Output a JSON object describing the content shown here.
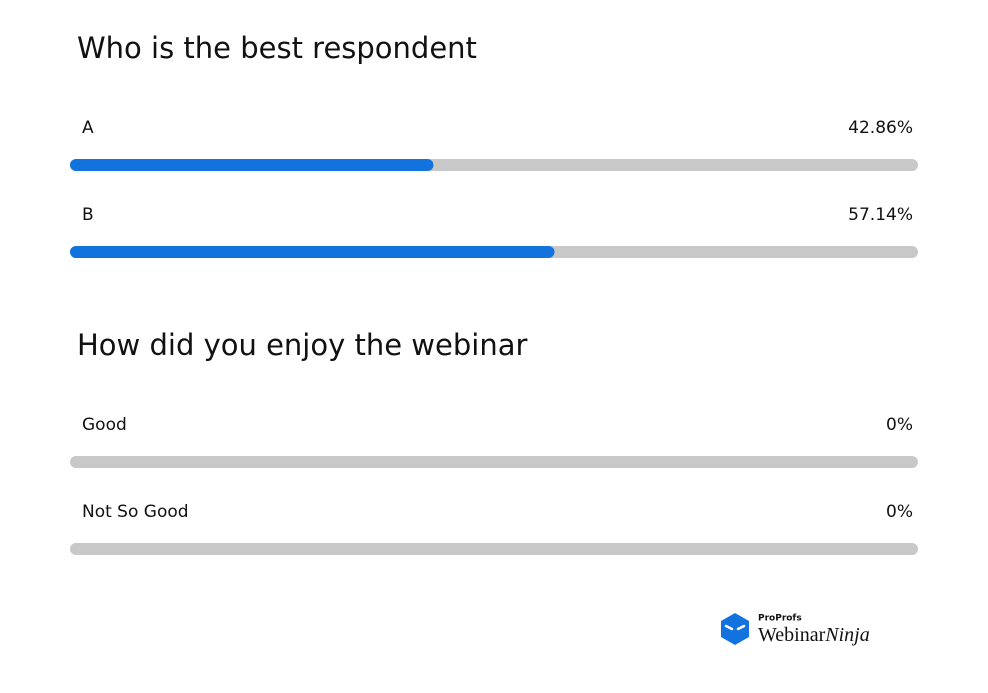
{
  "polls": [
    {
      "question": "Who is the best respondent",
      "options": [
        {
          "label": "A",
          "value": 42.86,
          "value_label": "42.86%"
        },
        {
          "label": "B",
          "value": 57.14,
          "value_label": "57.14%"
        }
      ]
    },
    {
      "question": "How did you enjoy the webinar",
      "options": [
        {
          "label": "Good",
          "value": 0,
          "value_label": "0%"
        },
        {
          "label": "Not So Good",
          "value": 0,
          "value_label": "0%"
        }
      ]
    }
  ],
  "logo": {
    "brand": "ProProfs",
    "name": "Webinar",
    "name_italic": "Ninja"
  },
  "fill_color": "#1273de",
  "track_color": "#c8c8c8"
}
